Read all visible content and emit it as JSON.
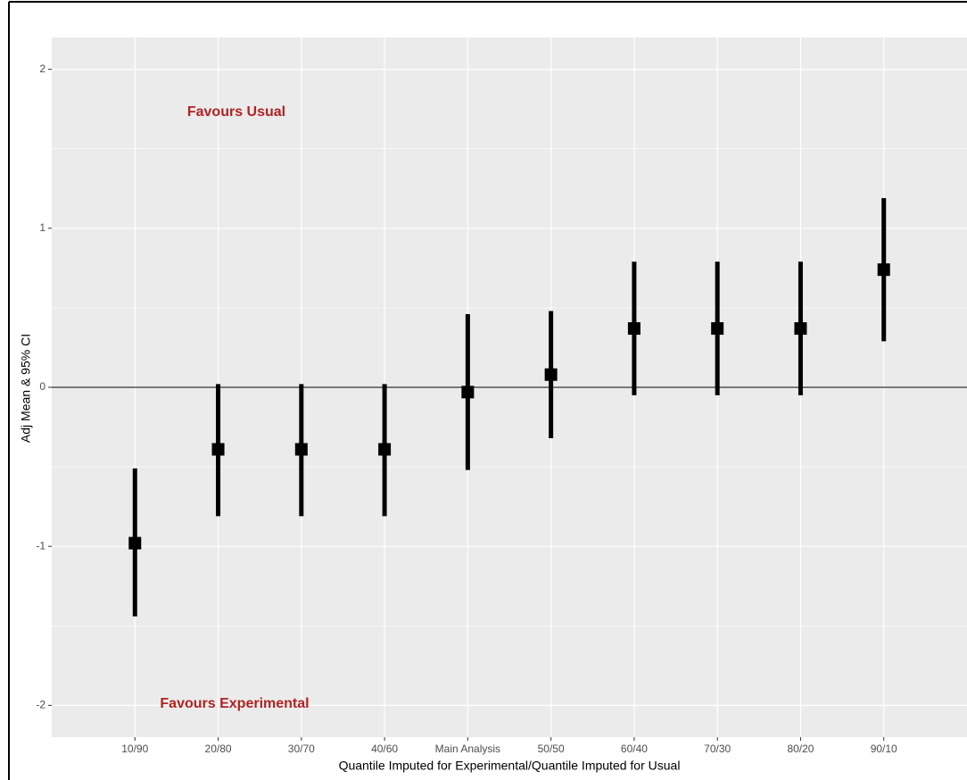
{
  "chart_data": {
    "type": "pointrange",
    "x_label": "Quantile Imputed for Experimental/Quantile Imputed for Usual",
    "y_label": "Adj Mean & 95% CI",
    "annotations": [
      "Favours Usual",
      "Favours Experimental"
    ],
    "categories": [
      "10/90",
      "20/80",
      "30/70",
      "40/60",
      "Main Analysis",
      "50/50",
      "60/40",
      "70/30",
      "80/20",
      "90/10"
    ],
    "values": [
      -0.98,
      -0.39,
      -0.39,
      -0.39,
      -0.03,
      0.08,
      0.37,
      0.37,
      0.37,
      0.74
    ],
    "lower": [
      -1.44,
      -0.81,
      -0.81,
      -0.81,
      -0.52,
      -0.32,
      -0.05,
      -0.05,
      -0.05,
      0.29
    ],
    "upper": [
      -0.51,
      0.02,
      0.02,
      0.02,
      0.46,
      0.48,
      0.79,
      0.79,
      0.79,
      1.19
    ],
    "color": "#000000",
    "ylim": [
      -2.2,
      2.2
    ],
    "yticks": [
      -2,
      -1,
      0,
      1,
      2
    ],
    "minor_yticks": [
      -1.5,
      -0.5,
      0.5,
      1.5
    ],
    "hline": 0,
    "grid": true
  }
}
